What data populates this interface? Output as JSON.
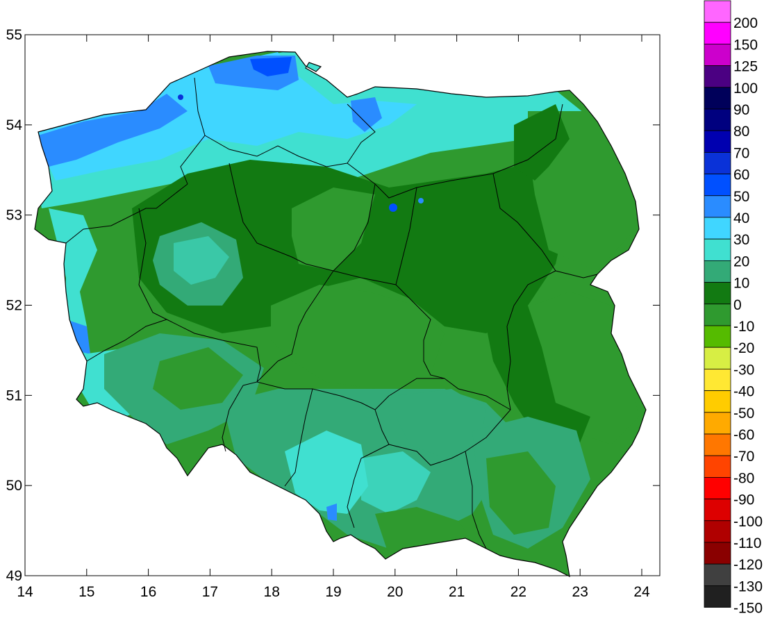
{
  "map": {
    "x_axis": {
      "min": 14,
      "max": 24,
      "ticks": [
        "14",
        "15",
        "16",
        "17",
        "18",
        "19",
        "20",
        "21",
        "22",
        "23",
        "24"
      ]
    },
    "y_axis": {
      "min": 49,
      "max": 55,
      "ticks": [
        "49",
        "50",
        "51",
        "52",
        "53",
        "54",
        "55"
      ]
    },
    "country_fill": "#2f9a3a",
    "border_color": "#000000"
  },
  "legend": {
    "labels": [
      "200",
      "150",
      "125",
      "100",
      "90",
      "80",
      "70",
      "60",
      "50",
      "40",
      "30",
      "20",
      "10",
      "0",
      "-10",
      "-20",
      "-30",
      "-40",
      "-50",
      "-60",
      "-70",
      "-80",
      "-90",
      "-100",
      "-110",
      "-120",
      "-130",
      "-150"
    ],
    "colors": [
      "#ff66ff",
      "#ff00ff",
      "#cc00cc",
      "#4b0082",
      "#00005a",
      "#00007f",
      "#0000b0",
      "#0a32d8",
      "#0050ff",
      "#2a8cff",
      "#40d6ff",
      "#40e0d0",
      "#33aa77",
      "#127a12",
      "#2f9a2f",
      "#55bb00",
      "#d7ee44",
      "#ffe833",
      "#ffcc00",
      "#ffaa00",
      "#ff7700",
      "#ff4400",
      "#ff0000",
      "#dd0000",
      "#b00000",
      "#8a0000",
      "#404040",
      "#202020"
    ]
  }
}
